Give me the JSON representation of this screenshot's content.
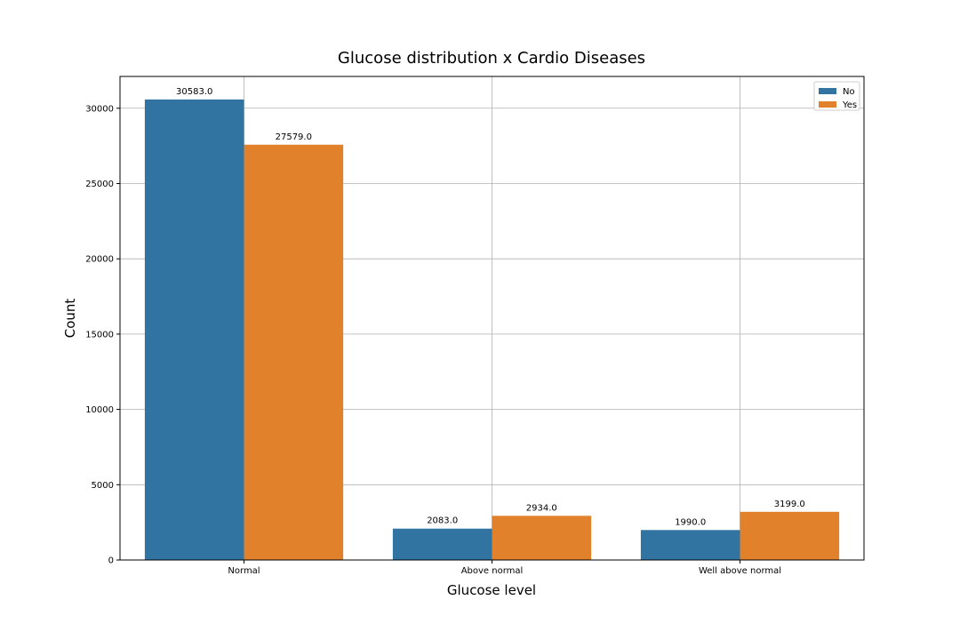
{
  "chart_data": {
    "type": "bar",
    "title": "Glucose distribution x Cardio Diseases",
    "xlabel": "Glucose level",
    "ylabel": "Count",
    "categories": [
      "Normal",
      "Above normal",
      "Well above normal"
    ],
    "series": [
      {
        "name": "No",
        "color": "#3274a1",
        "values": [
          30583,
          2083,
          1990
        ],
        "labels": [
          "30583.0",
          "2083.0",
          "1990.0"
        ]
      },
      {
        "name": "Yes",
        "color": "#e1812c",
        "values": [
          27579,
          2934,
          3199
        ],
        "labels": [
          "27579.0",
          "2934.0",
          "3199.0"
        ]
      }
    ],
    "ylim": [
      0,
      32112
    ],
    "yticks": [
      0,
      5000,
      10000,
      15000,
      20000,
      25000,
      30000
    ],
    "ytick_labels": [
      "0",
      "5000",
      "10000",
      "15000",
      "20000",
      "25000",
      "30000"
    ],
    "grid": true,
    "legend_position": "top-right"
  }
}
